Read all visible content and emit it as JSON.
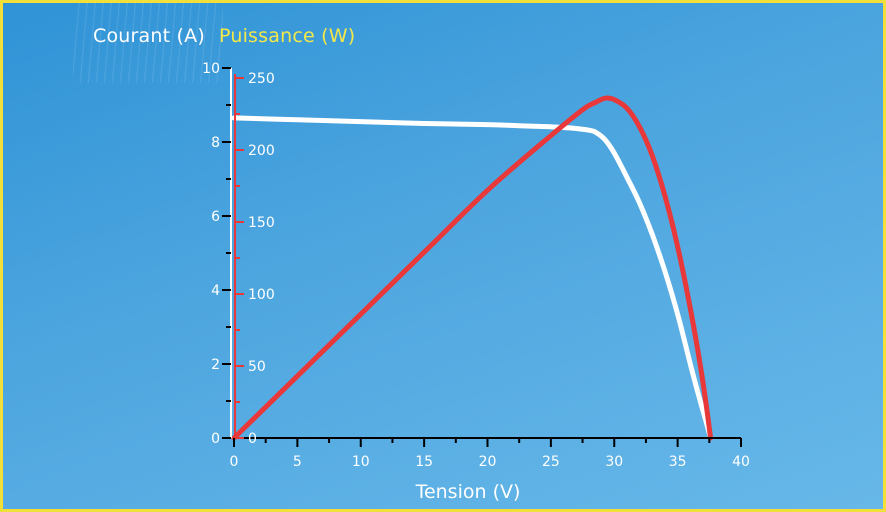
{
  "chart_data": {
    "type": "line",
    "labels": {
      "current_axis": "Courant (A)",
      "power_axis": "Puissance (W)",
      "xlabel": "Tension (V)"
    },
    "xlim": [
      0,
      40
    ],
    "x_ticks": [
      "0",
      "5",
      "10",
      "15",
      "20",
      "25",
      "30",
      "35",
      "40"
    ],
    "ylim_current": [
      0,
      10
    ],
    "y_current_ticks": [
      "0",
      "2",
      "4",
      "6",
      "8",
      "10"
    ],
    "ylim_power": [
      0,
      250
    ],
    "y_power_ticks": [
      "0",
      "50",
      "100",
      "150",
      "200",
      "250"
    ],
    "grid": false,
    "series": [
      {
        "axis": "current",
        "color": "#ffffff",
        "x": [
          0,
          5,
          10,
          15,
          20,
          22.5,
          25,
          26.5,
          28,
          28.6,
          29.3,
          30,
          31,
          32,
          33,
          34,
          35,
          36,
          36.7,
          37.2,
          37.6
        ],
        "y": [
          8.65,
          8.6,
          8.55,
          8.5,
          8.47,
          8.44,
          8.41,
          8.38,
          8.32,
          8.25,
          8.05,
          7.7,
          7.05,
          6.35,
          5.5,
          4.5,
          3.35,
          2.0,
          1.1,
          0.5,
          0.0
        ]
      },
      {
        "axis": "power",
        "color": "#e8383a",
        "x": [
          0,
          5,
          10,
          15,
          20,
          25,
          27.5,
          28.5,
          29.3,
          30,
          31,
          32,
          33,
          34,
          35,
          36,
          36.8,
          37.3,
          37.6
        ],
        "y": [
          0,
          43,
          86,
          129,
          172,
          210,
          228,
          233,
          236,
          235,
          229,
          216,
          196,
          168,
          133,
          90,
          50,
          20,
          0
        ]
      }
    ],
    "colors": {
      "current_axis": "#ffffff",
      "power_axis": "#e8383a",
      "power_label": "#f3e84a",
      "border": "#f2df3a"
    }
  }
}
